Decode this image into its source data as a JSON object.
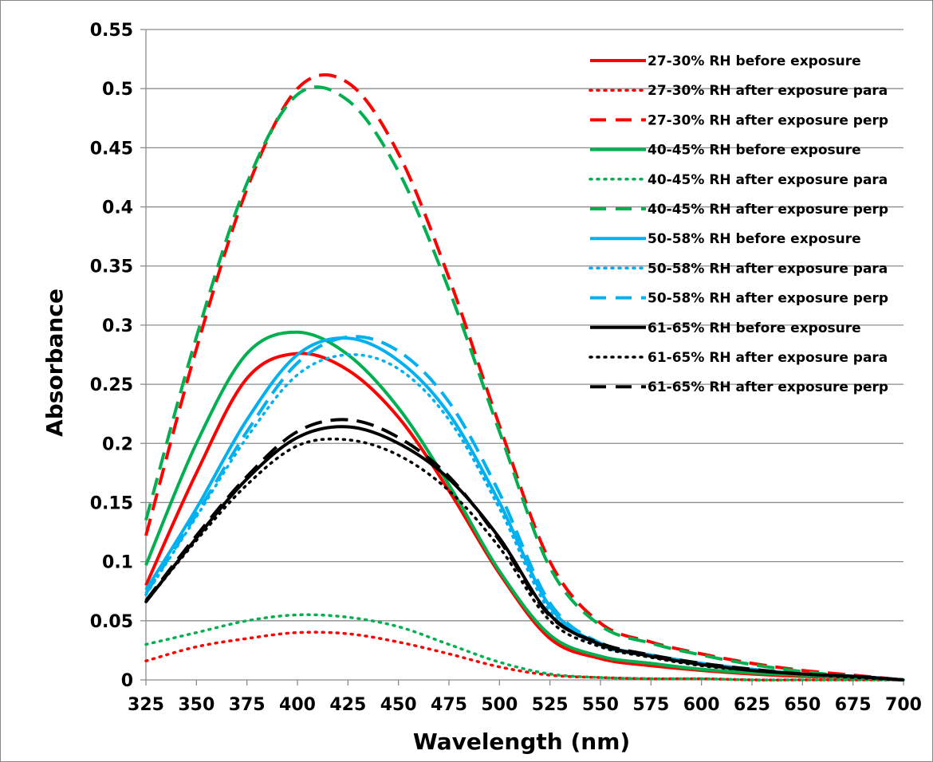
{
  "chart_data": {
    "type": "line",
    "title": "",
    "xlabel": "Wavelength (nm)",
    "ylabel": "Absorbance",
    "xlim": [
      325,
      700
    ],
    "ylim": [
      0,
      0.55
    ],
    "x_ticks": [
      "325",
      "350",
      "375",
      "400",
      "425",
      "450",
      "475",
      "500",
      "525",
      "550",
      "575",
      "600",
      "625",
      "650",
      "675",
      "700"
    ],
    "y_ticks": [
      "0",
      "0.05",
      "0.1",
      "0.15",
      "0.2",
      "0.25",
      "0.3",
      "0.35",
      "0.4",
      "0.45",
      "0.5",
      "0.55"
    ],
    "grid": "horizontal",
    "legend_position": "right",
    "x": [
      325,
      350,
      375,
      400,
      425,
      450,
      475,
      500,
      525,
      550,
      575,
      600,
      625,
      650,
      675,
      700
    ],
    "series": [
      {
        "name": "27-30% RH before exposure",
        "color": "#ff0000",
        "dash": "solid",
        "values": [
          0.08,
          0.175,
          0.255,
          0.276,
          0.262,
          0.222,
          0.16,
          0.09,
          0.035,
          0.018,
          0.012,
          0.008,
          0.005,
          0.003,
          0.002,
          0.0
        ]
      },
      {
        "name": "27-30% RH after exposure para",
        "color": "#ff0000",
        "dash": "dot",
        "values": [
          0.016,
          0.028,
          0.035,
          0.04,
          0.039,
          0.032,
          0.022,
          0.011,
          0.004,
          0.002,
          0.001,
          0.001,
          0.0,
          0.0,
          0.0,
          0.0
        ]
      },
      {
        "name": "27-30% RH after exposure perp",
        "color": "#ff0000",
        "dash": "dash",
        "values": [
          0.122,
          0.28,
          0.415,
          0.5,
          0.505,
          0.445,
          0.34,
          0.215,
          0.1,
          0.048,
          0.032,
          0.022,
          0.014,
          0.008,
          0.004,
          0.0
        ]
      },
      {
        "name": "40-45% RH before exposure",
        "color": "#00b050",
        "dash": "solid",
        "values": [
          0.097,
          0.2,
          0.276,
          0.294,
          0.275,
          0.23,
          0.165,
          0.092,
          0.038,
          0.02,
          0.014,
          0.009,
          0.006,
          0.004,
          0.002,
          0.0
        ]
      },
      {
        "name": "40-45% RH after exposure para",
        "color": "#00b050",
        "dash": "dot",
        "values": [
          0.03,
          0.04,
          0.05,
          0.055,
          0.053,
          0.045,
          0.03,
          0.015,
          0.005,
          0.002,
          0.001,
          0.001,
          0.0,
          0.0,
          0.0,
          0.0
        ]
      },
      {
        "name": "40-45% RH after exposure perp",
        "color": "#00b050",
        "dash": "dash",
        "values": [
          0.135,
          0.29,
          0.42,
          0.495,
          0.49,
          0.43,
          0.33,
          0.21,
          0.095,
          0.046,
          0.031,
          0.021,
          0.013,
          0.007,
          0.003,
          0.0
        ]
      },
      {
        "name": "50-58% RH before exposure",
        "color": "#00b0f0",
        "dash": "solid",
        "values": [
          0.076,
          0.145,
          0.22,
          0.275,
          0.289,
          0.27,
          0.225,
          0.15,
          0.062,
          0.03,
          0.021,
          0.014,
          0.009,
          0.005,
          0.003,
          0.0
        ]
      },
      {
        "name": "50-58% RH after exposure para",
        "color": "#00b0f0",
        "dash": "dot",
        "values": [
          0.072,
          0.138,
          0.205,
          0.258,
          0.275,
          0.263,
          0.22,
          0.145,
          0.058,
          0.029,
          0.02,
          0.013,
          0.008,
          0.005,
          0.003,
          0.0
        ]
      },
      {
        "name": "50-58% RH after exposure perp",
        "color": "#00b0f0",
        "dash": "dash",
        "values": [
          0.073,
          0.14,
          0.21,
          0.268,
          0.29,
          0.278,
          0.235,
          0.158,
          0.065,
          0.031,
          0.021,
          0.014,
          0.009,
          0.005,
          0.003,
          0.0
        ]
      },
      {
        "name": "61-65% RH before exposure",
        "color": "#000000",
        "dash": "solid",
        "values": [
          0.066,
          0.12,
          0.17,
          0.205,
          0.214,
          0.2,
          0.17,
          0.12,
          0.055,
          0.03,
          0.02,
          0.013,
          0.008,
          0.005,
          0.003,
          0.0
        ]
      },
      {
        "name": "61-65% RH after exposure para",
        "color": "#000000",
        "dash": "dot",
        "values": [
          0.066,
          0.118,
          0.165,
          0.198,
          0.203,
          0.19,
          0.16,
          0.112,
          0.05,
          0.028,
          0.019,
          0.012,
          0.008,
          0.005,
          0.002,
          0.0
        ]
      },
      {
        "name": "61-65% RH after exposure perp",
        "color": "#000000",
        "dash": "dash",
        "values": [
          0.067,
          0.122,
          0.172,
          0.21,
          0.22,
          0.205,
          0.172,
          0.118,
          0.054,
          0.031,
          0.021,
          0.014,
          0.009,
          0.005,
          0.003,
          0.0
        ]
      }
    ]
  }
}
